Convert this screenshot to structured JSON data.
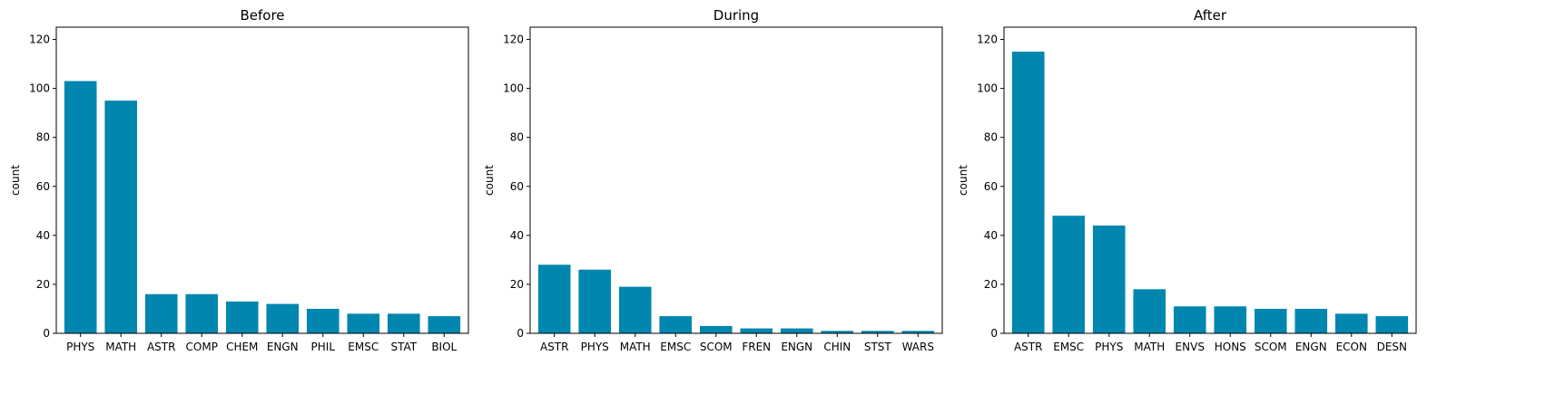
{
  "chart_data": [
    {
      "type": "bar",
      "title": "Before",
      "xlabel": "",
      "ylabel": "count",
      "ylim": [
        0,
        125
      ],
      "yticks": [
        0,
        20,
        40,
        60,
        80,
        100,
        120
      ],
      "grid": false,
      "bar_color": "#0086AF",
      "categories": [
        "PHYS",
        "MATH",
        "ASTR",
        "COMP",
        "CHEM",
        "ENGN",
        "PHIL",
        "EMSC",
        "STAT",
        "BIOL"
      ],
      "values": [
        103,
        95,
        16,
        16,
        13,
        12,
        10,
        8,
        8,
        7
      ]
    },
    {
      "type": "bar",
      "title": "During",
      "xlabel": "",
      "ylabel": "count",
      "ylim": [
        0,
        125
      ],
      "yticks": [
        0,
        20,
        40,
        60,
        80,
        100,
        120
      ],
      "grid": false,
      "bar_color": "#0086AF",
      "categories": [
        "ASTR",
        "PHYS",
        "MATH",
        "EMSC",
        "SCOM",
        "FREN",
        "ENGN",
        "CHIN",
        "STST",
        "WARS"
      ],
      "values": [
        28,
        26,
        19,
        7,
        3,
        2,
        2,
        1,
        1,
        1
      ]
    },
    {
      "type": "bar",
      "title": "After",
      "xlabel": "",
      "ylabel": "count",
      "ylim": [
        0,
        125
      ],
      "yticks": [
        0,
        20,
        40,
        60,
        80,
        100,
        120
      ],
      "grid": false,
      "bar_color": "#0086AF",
      "categories": [
        "ASTR",
        "EMSC",
        "PHYS",
        "MATH",
        "ENVS",
        "HONS",
        "SCOM",
        "ENGN",
        "ECON",
        "DESN"
      ],
      "values": [
        115,
        48,
        44,
        18,
        11,
        11,
        10,
        10,
        8,
        7
      ]
    }
  ]
}
